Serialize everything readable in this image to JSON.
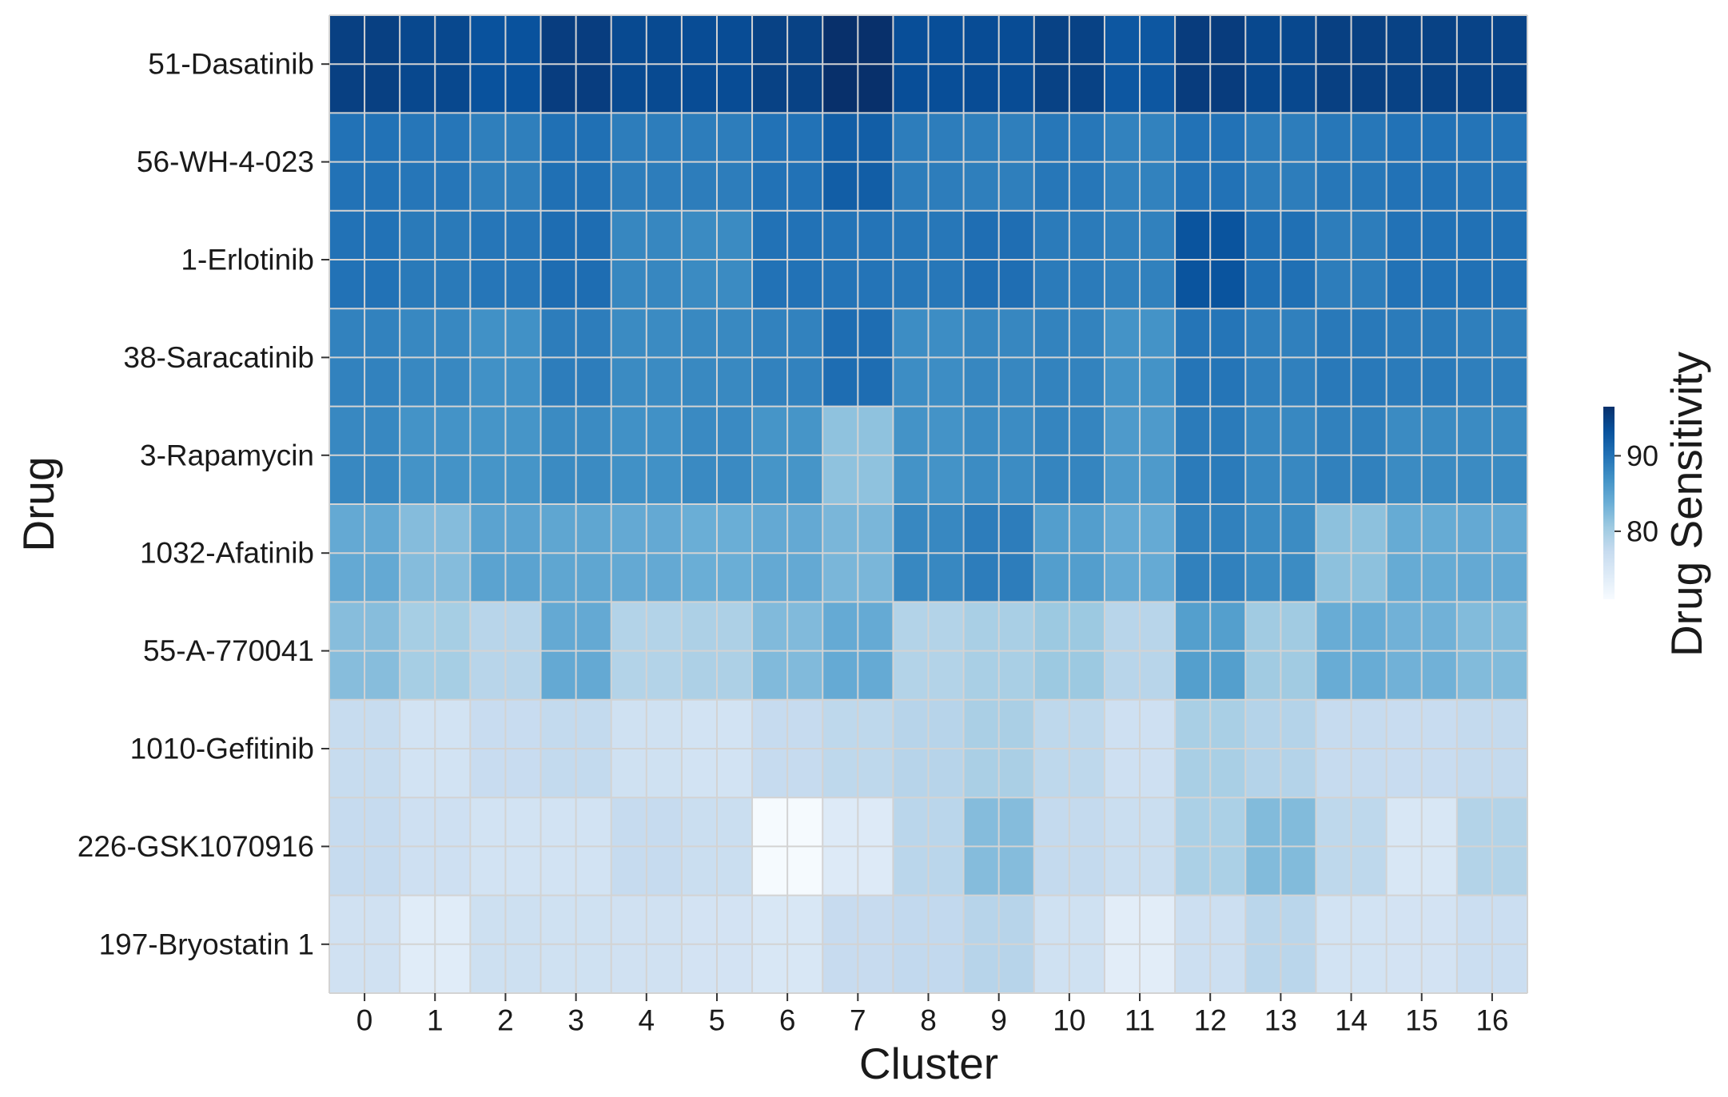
{
  "chart_data": {
    "type": "heatmap",
    "xlabel": "Cluster",
    "ylabel": "Drug",
    "colorbar_label": "Drug Sensitivity",
    "color_range": [
      71,
      96.5
    ],
    "colorbar_ticks": [
      80,
      90
    ],
    "grid": true,
    "x_categories": [
      "0",
      "1",
      "2",
      "3",
      "4",
      "5",
      "6",
      "7",
      "8",
      "9",
      "10",
      "11",
      "12",
      "13",
      "14",
      "15",
      "16"
    ],
    "y_categories": [
      "51-Dasatinib",
      "56-WH-4-023",
      "1-Erlotinib",
      "38-Saracatinib",
      "3-Rapamycin",
      "1032-Afatinib",
      "55-A-770041",
      "1010-Gefitinib",
      "226-GSK1070916",
      "197-Bryostatin 1"
    ],
    "values": [
      [
        95.0,
        94.2,
        93.2,
        95.2,
        94.0,
        93.8,
        94.8,
        96.5,
        93.6,
        93.8,
        94.8,
        92.7,
        95.3,
        94.2,
        95.0,
        94.8,
        94.7
      ],
      [
        90.0,
        89.6,
        88.8,
        90.2,
        89.0,
        89.0,
        90.0,
        92.0,
        89.0,
        88.8,
        89.5,
        88.5,
        90.0,
        89.0,
        89.5,
        90.0,
        89.8
      ],
      [
        90.0,
        89.3,
        89.6,
        90.5,
        88.0,
        87.6,
        90.0,
        89.8,
        89.5,
        90.4,
        89.2,
        88.6,
        93.0,
        90.2,
        89.0,
        90.0,
        90.1
      ],
      [
        88.5,
        87.9,
        87.0,
        89.0,
        87.6,
        87.8,
        88.5,
        90.5,
        87.4,
        88.0,
        88.4,
        86.8,
        89.7,
        88.7,
        89.4,
        89.2,
        88.8
      ],
      [
        87.9,
        86.8,
        86.6,
        87.6,
        87.0,
        87.7,
        86.6,
        81.5,
        86.8,
        87.5,
        88.2,
        86.0,
        89.2,
        87.9,
        88.6,
        87.6,
        87.6
      ],
      [
        84.3,
        82.1,
        85.0,
        84.7,
        84.3,
        83.8,
        84.3,
        82.8,
        87.9,
        89.0,
        85.6,
        84.2,
        88.6,
        87.5,
        81.6,
        84.1,
        84.3
      ],
      [
        82.0,
        79.9,
        78.5,
        84.3,
        78.9,
        79.4,
        82.4,
        84.2,
        78.9,
        79.7,
        80.7,
        78.5,
        85.5,
        80.3,
        84.0,
        83.4,
        82.3
      ],
      [
        77.2,
        75.8,
        77.1,
        77.6,
        76.2,
        75.8,
        77.4,
        78.0,
        78.6,
        79.6,
        78.0,
        76.3,
        79.7,
        78.8,
        77.4,
        77.1,
        77.5
      ],
      [
        77.4,
        76.3,
        75.8,
        75.8,
        77.4,
        76.8,
        71.2,
        74.3,
        78.3,
        82.1,
        77.5,
        76.8,
        79.5,
        82.3,
        78.0,
        75.0,
        78.9
      ],
      [
        76.1,
        73.9,
        76.4,
        76.2,
        76.1,
        75.7,
        75.0,
        77.3,
        77.7,
        78.6,
        76.2,
        73.7,
        76.6,
        78.3,
        75.8,
        75.7,
        76.7
      ]
    ],
    "colormap_stops": [
      "#f7fbff",
      "#deebf7",
      "#c6dbef",
      "#9ecae1",
      "#6baed6",
      "#4292c6",
      "#2171b5",
      "#08519c",
      "#08306b"
    ]
  },
  "colors": {
    "grid_line": "#d3d3d3",
    "tick": "#333333",
    "text": "#1a1a1a"
  }
}
